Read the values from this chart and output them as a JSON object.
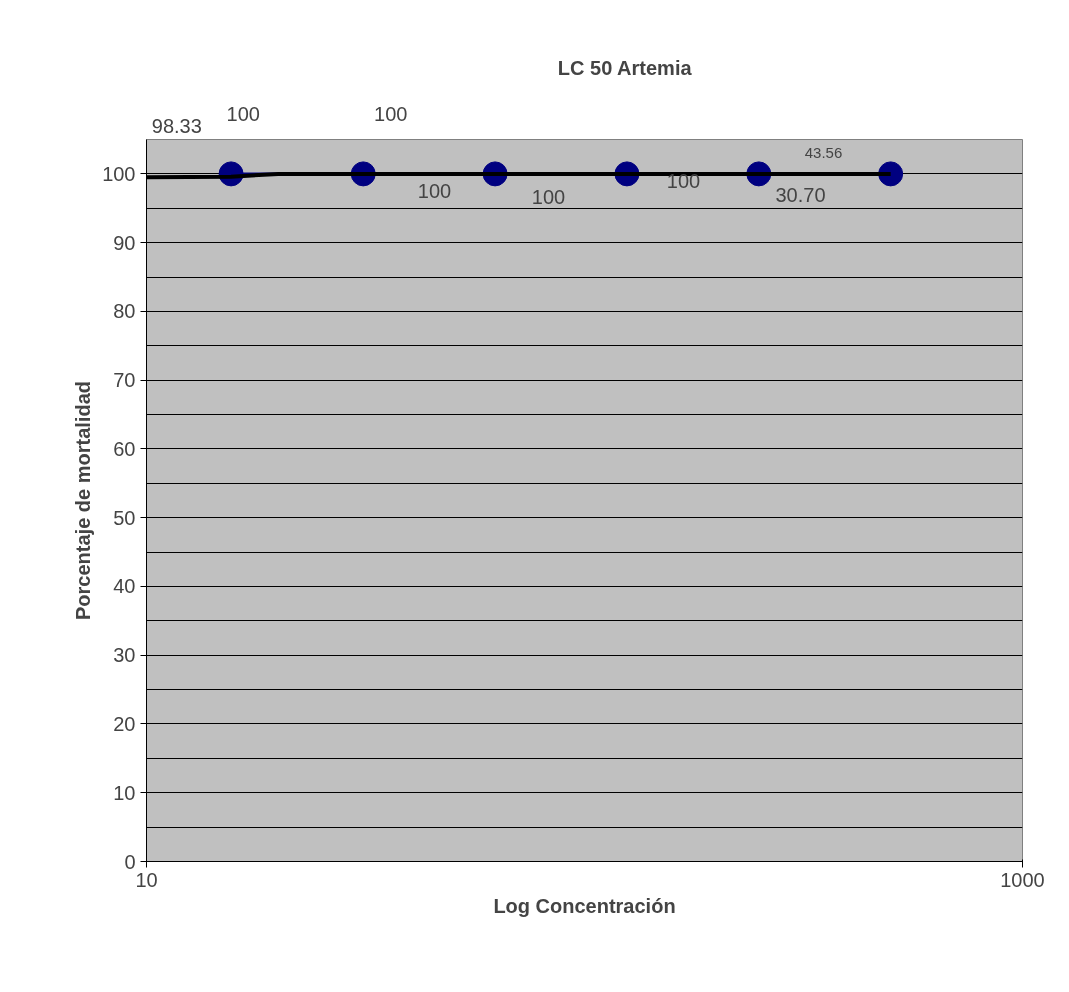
{
  "chart_data": {
    "type": "scatter",
    "title": "LC 50 Artemia",
    "xlabel": "Log Concentración",
    "ylabel": "Porcentaje de mortalidad",
    "log": "x",
    "xlim": [
      10,
      1000
    ],
    "xticks": [
      10,
      1000
    ],
    "ylim": [
      0,
      105
    ],
    "yticks": [
      0,
      10,
      20,
      30,
      40,
      50,
      60,
      70,
      80,
      90,
      100
    ],
    "grid": "y",
    "marker": "circle",
    "series": [
      {
        "type": "scatter",
        "color": "#000080",
        "x": [
          15.6,
          31.25,
          62.5,
          125,
          250,
          500
        ],
        "values": [
          100,
          100,
          100,
          100,
          100,
          100
        ]
      },
      {
        "type": "line",
        "marker": "none",
        "color": "#000000",
        "x": [
          10,
          15.6,
          20,
          500
        ],
        "values": [
          99.5,
          99.6,
          100,
          100
        ]
      }
    ],
    "annotations": [
      "98.33",
      "100",
      "100",
      "100",
      "100",
      "100",
      "30.70",
      "43.56"
    ]
  }
}
